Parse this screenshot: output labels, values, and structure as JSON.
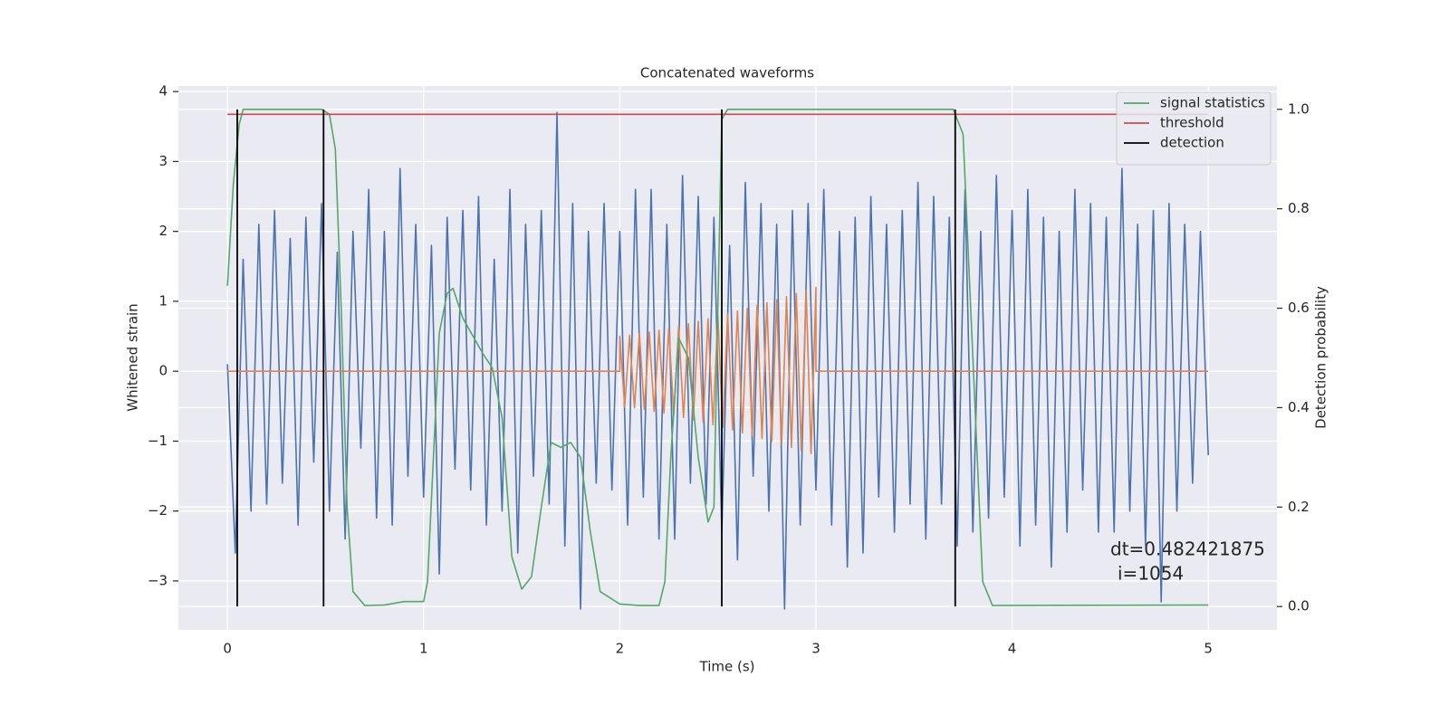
{
  "chart_data": {
    "type": "line",
    "title": "Concatenated waveforms",
    "xlabel": "Time (s)",
    "ylabel": "Whitened strain",
    "y2label": "Detection probability",
    "xlim": [
      -0.25,
      5.35
    ],
    "ylim": [
      -3.7,
      4.08
    ],
    "y2lim": [
      -0.047,
      1.047
    ],
    "xticks": [
      0,
      1,
      2,
      3,
      4,
      5
    ],
    "yticks": [
      {
        "value": -3,
        "label": "−3"
      },
      {
        "value": -2,
        "label": "−2"
      },
      {
        "value": -1,
        "label": "−1"
      },
      0,
      1,
      2,
      3,
      4
    ],
    "y2ticks": [
      {
        "value": 0,
        "label": "0.0"
      },
      0.2,
      0.4,
      0.6,
      0.8,
      {
        "value": 1,
        "label": "1.0"
      }
    ],
    "grid": true,
    "legend": "upper right",
    "annotations": [
      "dt=0.482421875",
      "i=1054"
    ],
    "series": [
      {
        "type": "line",
        "color": "#4c72b0",
        "x": [
          0,
          0.04,
          0.08,
          0.12,
          0.16,
          0.2,
          0.24,
          0.28,
          0.32,
          0.36,
          0.4,
          0.44,
          0.48,
          0.52,
          0.56,
          0.6,
          0.64,
          0.68,
          0.72,
          0.76,
          0.8,
          0.84,
          0.88,
          0.92,
          0.96,
          1,
          1.04,
          1.08,
          1.12,
          1.16,
          1.2,
          1.24,
          1.28,
          1.32,
          1.36,
          1.4,
          1.44,
          1.48,
          1.52,
          1.56,
          1.6,
          1.64,
          1.68,
          1.72,
          1.76,
          1.8,
          1.84,
          1.88,
          1.92,
          1.96,
          2,
          2.04,
          2.08,
          2.12,
          2.16,
          2.2,
          2.24,
          2.28,
          2.32,
          2.36,
          2.4,
          2.44,
          2.48,
          2.52,
          2.56,
          2.6,
          2.64,
          2.68,
          2.72,
          2.76,
          2.8,
          2.84,
          2.88,
          2.92,
          2.96,
          3,
          3.04,
          3.08,
          3.12,
          3.16,
          3.2,
          3.24,
          3.28,
          3.32,
          3.36,
          3.4,
          3.44,
          3.48,
          3.52,
          3.56,
          3.6,
          3.64,
          3.68,
          3.72,
          3.76,
          3.8,
          3.84,
          3.88,
          3.92,
          3.96,
          4,
          4.04,
          4.08,
          4.12,
          4.16,
          4.2,
          4.24,
          4.28,
          4.32,
          4.36,
          4.4,
          4.44,
          4.48,
          4.52,
          4.56,
          4.6,
          4.64,
          4.68,
          4.72,
          4.76,
          4.8,
          4.84,
          4.88,
          4.92,
          4.96,
          5
        ],
        "values": [
          0.1,
          -2.6,
          1.6,
          -2.0,
          2.1,
          -1.9,
          2.3,
          -1.6,
          1.9,
          -2.2,
          2.2,
          -1.3,
          2.4,
          -2.0,
          1.7,
          -2.4,
          2.0,
          -1.1,
          2.6,
          -2.1,
          2.0,
          -2.2,
          2.9,
          -1.5,
          2.1,
          -1.8,
          1.8,
          -2.9,
          2.2,
          -1.4,
          2.3,
          -1.7,
          2.5,
          -2.2,
          1.6,
          -2.0,
          2.6,
          -2.6,
          2.1,
          -1.5,
          2.3,
          -1.9,
          3.7,
          -2.5,
          2.4,
          -3.4,
          2.0,
          -1.6,
          2.4,
          -1.7,
          2.0,
          -2.2,
          2.6,
          -1.8,
          2.6,
          -2.4,
          2.1,
          -2.4,
          2.8,
          -1.6,
          2.5,
          -1.9,
          2.2,
          -2.3,
          1.8,
          -2.7,
          2.7,
          -1.5,
          2.4,
          -2.0,
          2.1,
          -3.4,
          2.3,
          -2.2,
          2.4,
          -1.7,
          2.6,
          -2.2,
          2.0,
          -2.8,
          2.2,
          -2.6,
          2.5,
          -1.8,
          2.1,
          -2.3,
          2.3,
          -1.9,
          2.7,
          -2.4,
          2.5,
          -1.9,
          2.2,
          -2.5,
          2.6,
          -2.3,
          2.0,
          -2.1,
          2.8,
          -1.8,
          2.3,
          -2.5,
          2.6,
          -2.2,
          2.2,
          -2.8,
          2.0,
          -2.3,
          2.6,
          -1.7,
          2.4,
          -2.3,
          2.2,
          -2.3,
          2.9,
          -2.0,
          2.1,
          -2.5,
          2.3,
          -3.3,
          2.4,
          -2.0,
          2.1,
          -1.6,
          2.0,
          -1.2
        ]
      },
      {
        "type": "line",
        "color": "#dd8452",
        "x": [
          0,
          2.0,
          2.0,
          2.025,
          2.05,
          2.075,
          2.1,
          2.125,
          2.15,
          2.175,
          2.2,
          2.225,
          2.25,
          2.275,
          2.3,
          2.325,
          2.35,
          2.375,
          2.4,
          2.425,
          2.45,
          2.475,
          2.5,
          2.525,
          2.55,
          2.575,
          2.6,
          2.625,
          2.65,
          2.675,
          2.7,
          2.725,
          2.75,
          2.775,
          2.8,
          2.825,
          2.85,
          2.875,
          2.9,
          2.925,
          2.95,
          2.975,
          3.0,
          3.0,
          5.0
        ],
        "values": [
          0,
          0,
          0.5,
          -0.506,
          0.514,
          -0.524,
          0.535,
          -0.547,
          0.56,
          -0.573,
          0.586,
          -0.601,
          0.616,
          -0.631,
          0.646,
          -0.662,
          0.679,
          -0.695,
          0.713,
          -0.73,
          0.748,
          -0.766,
          0.784,
          -0.803,
          0.822,
          -0.841,
          0.86,
          -0.88,
          0.9,
          -0.92,
          0.94,
          -0.961,
          0.982,
          -1.003,
          1.024,
          -1.045,
          1.067,
          -1.089,
          1.11,
          -1.133,
          1.155,
          -1.178,
          1.2,
          0,
          0
        ]
      },
      {
        "type": "line",
        "name": "signal statistics",
        "color": "#55a868",
        "axis": "y2",
        "x": [
          0,
          0.03,
          0.06,
          0.08,
          0.12,
          0.48,
          0.52,
          0.55,
          0.58,
          0.61,
          0.64,
          0.7,
          0.8,
          0.9,
          1.0,
          1.02,
          1.05,
          1.08,
          1.12,
          1.15,
          1.2,
          1.3,
          1.35,
          1.4,
          1.45,
          1.5,
          1.55,
          1.6,
          1.65,
          1.7,
          1.75,
          1.8,
          1.85,
          1.9,
          2.0,
          2.1,
          2.2,
          2.23,
          2.26,
          2.3,
          2.35,
          2.4,
          2.45,
          2.48,
          2.5,
          2.52,
          2.55,
          3.7,
          3.75,
          3.8,
          3.85,
          3.9,
          5.0
        ],
        "values": [
          0.645,
          0.85,
          0.97,
          1.0,
          1.0,
          1.0,
          0.99,
          0.92,
          0.6,
          0.2,
          0.03,
          0.002,
          0.003,
          0.01,
          0.01,
          0.05,
          0.3,
          0.55,
          0.63,
          0.64,
          0.58,
          0.51,
          0.48,
          0.38,
          0.1,
          0.035,
          0.06,
          0.2,
          0.33,
          0.32,
          0.33,
          0.3,
          0.15,
          0.03,
          0.005,
          0.002,
          0.002,
          0.05,
          0.3,
          0.54,
          0.5,
          0.3,
          0.17,
          0.2,
          0.6,
          0.98,
          1.0,
          1.0,
          0.95,
          0.5,
          0.05,
          0.002,
          0.003
        ]
      },
      {
        "type": "line",
        "name": "threshold",
        "color": "#c44e52",
        "axis": "y2",
        "x": [
          0,
          5
        ],
        "values": [
          0.99,
          0.99
        ]
      },
      {
        "type": "vlines",
        "name": "detection",
        "color": "#000000",
        "axis": "y2",
        "x": [
          0.05,
          0.49,
          2.52,
          3.71
        ],
        "span": [
          0,
          1
        ]
      }
    ]
  }
}
